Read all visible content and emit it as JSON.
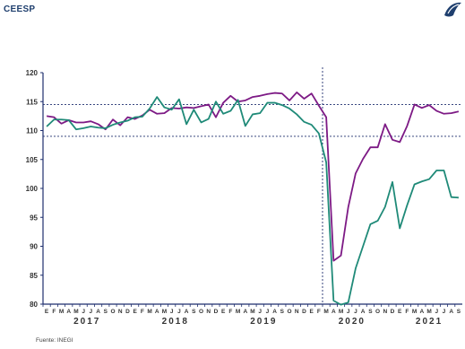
{
  "header": {
    "brand": "CEESP"
  },
  "source": "Fuente: INEGI",
  "colors": {
    "series_a": "#7d1a85",
    "series_b": "#1f8a78",
    "axis": "#1f2f6e"
  },
  "chart_data": {
    "type": "line",
    "title": "",
    "xlabel": "",
    "ylabel": "",
    "ylim": [
      80,
      120
    ],
    "yticks": [
      80,
      85,
      90,
      95,
      100,
      105,
      110,
      115,
      120
    ],
    "month_labels": [
      "E",
      "F",
      "M",
      "A",
      "M",
      "J",
      "J",
      "A",
      "S",
      "O",
      "N",
      "D"
    ],
    "years": [
      "2017",
      "2018",
      "2019",
      "2020",
      "2021"
    ],
    "months_2021_shown": 9,
    "reference_lines_y": [
      114.5,
      109
    ],
    "reference_line_x_month": "2020-03",
    "series": [
      {
        "color": "#7d1a85",
        "values": [
          112.5,
          112.3,
          111.2,
          111.8,
          111.4,
          111.4,
          111.6,
          111.1,
          110.2,
          111.9,
          110.9,
          112.3,
          112.0,
          112.6,
          113.6,
          112.9,
          113.0,
          113.9,
          113.8,
          114.0,
          113.9,
          114.2,
          114.5,
          112.3,
          114.8,
          116.0,
          115.0,
          115.2,
          115.8,
          116.0,
          116.3,
          116.5,
          116.4,
          115.2,
          116.6,
          115.5,
          116.4,
          114.3,
          112.3,
          87.5,
          88.4,
          96.8,
          102.6,
          105.1,
          107.1,
          107.1,
          111.1,
          108.4,
          108.0,
          110.8,
          114.5,
          113.9,
          114.4,
          113.4,
          112.9,
          113.0,
          113.3
        ]
      },
      {
        "color": "#1f8a78",
        "values": [
          110.7,
          111.9,
          111.9,
          111.8,
          110.2,
          110.4,
          110.7,
          110.5,
          110.4,
          111.0,
          111.4,
          111.7,
          112.3,
          112.4,
          113.8,
          115.8,
          114.0,
          113.6,
          115.4,
          111.1,
          113.6,
          111.4,
          112.0,
          115.0,
          112.9,
          113.4,
          115.3,
          110.8,
          112.8,
          113.0,
          114.8,
          114.8,
          114.4,
          113.8,
          112.8,
          111.5,
          111.0,
          109.5,
          104.5,
          80.6,
          79.9,
          80.3,
          86.2,
          90.0,
          93.8,
          94.4,
          96.8,
          101.1,
          93.1,
          97.1,
          100.7,
          101.2,
          101.6,
          103.1,
          103.1,
          98.5,
          98.4
        ]
      }
    ]
  }
}
